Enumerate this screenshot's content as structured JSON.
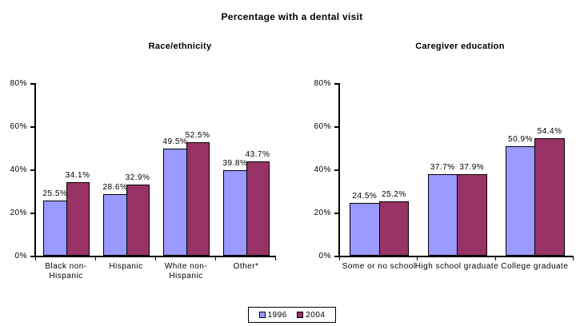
{
  "title": "Percentage with a dental visit",
  "legend": {
    "items": [
      {
        "label": "1996",
        "color": "#9999FF"
      },
      {
        "label": "2004",
        "color": "#993366"
      }
    ]
  },
  "y_axis": {
    "tick_labels": [
      "0%",
      "20%",
      "40%",
      "60%",
      "80%"
    ],
    "min": 0,
    "max": 80,
    "step": 20
  },
  "chart_data": [
    {
      "type": "bar",
      "title": "Race/ethnicity",
      "categories": [
        "Black non-Hispanic",
        "Hispanic",
        "White non-Hispanic",
        "Other*"
      ],
      "series": [
        {
          "name": "1996",
          "color": "#9999FF",
          "values": [
            25.5,
            28.6,
            49.5,
            39.8
          ]
        },
        {
          "name": "2004",
          "color": "#993366",
          "values": [
            34.1,
            32.9,
            52.5,
            43.7
          ]
        }
      ],
      "data_labels": [
        "25.5%",
        "34.1%",
        "28.6%",
        "32.9%",
        "49.5%",
        "52.5%",
        "39.8%",
        "43.7%"
      ],
      "xlabel": "",
      "ylabel": "",
      "ylim": [
        0,
        80
      ],
      "grid": false,
      "legend_position": "bottom-center-shared"
    },
    {
      "type": "bar",
      "title": "Caregiver education",
      "categories": [
        "Some or no school",
        "High school graduate",
        "College graduate"
      ],
      "series": [
        {
          "name": "1996",
          "color": "#9999FF",
          "values": [
            24.5,
            37.7,
            50.9
          ]
        },
        {
          "name": "2004",
          "color": "#993366",
          "values": [
            25.2,
            37.9,
            54.4
          ]
        }
      ],
      "data_labels": [
        "24.5%",
        "25.2%",
        "37.7%",
        "37.9%",
        "50.9%",
        "54.4%"
      ],
      "xlabel": "",
      "ylabel": "",
      "ylim": [
        0,
        80
      ],
      "grid": false,
      "legend_position": "bottom-center-shared"
    }
  ]
}
